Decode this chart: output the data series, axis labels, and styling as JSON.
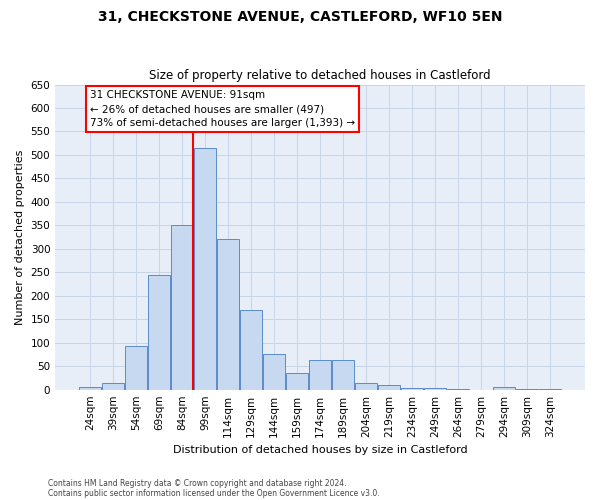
{
  "title": "31, CHECKSTONE AVENUE, CASTLEFORD, WF10 5EN",
  "subtitle": "Size of property relative to detached houses in Castleford",
  "xlabel": "Distribution of detached houses by size in Castleford",
  "ylabel": "Number of detached properties",
  "bar_labels": [
    "24sqm",
    "39sqm",
    "54sqm",
    "69sqm",
    "84sqm",
    "99sqm",
    "114sqm",
    "129sqm",
    "144sqm",
    "159sqm",
    "174sqm",
    "189sqm",
    "204sqm",
    "219sqm",
    "234sqm",
    "249sqm",
    "264sqm",
    "279sqm",
    "294sqm",
    "309sqm",
    "324sqm"
  ],
  "bar_values": [
    5,
    15,
    93,
    245,
    350,
    515,
    320,
    170,
    77,
    35,
    63,
    63,
    15,
    11,
    3,
    3,
    1,
    0,
    5,
    1,
    2
  ],
  "bar_color": "#c6d9f0",
  "bar_edge_color": "#5b8cc8",
  "grid_color": "#c8d4e8",
  "background_color": "#e8eef8",
  "ylim": [
    0,
    650
  ],
  "yticks": [
    0,
    50,
    100,
    150,
    200,
    250,
    300,
    350,
    400,
    450,
    500,
    550,
    600,
    650
  ],
  "annotation_line1": "31 CHECKSTONE AVENUE: 91sqm",
  "annotation_line2": "← 26% of detached houses are smaller (497)",
  "annotation_line3": "73% of semi-detached houses are larger (1,393) →",
  "red_line_x": 91,
  "bin_width": 15,
  "footer1": "Contains HM Land Registry data © Crown copyright and database right 2024.",
  "footer2": "Contains public sector information licensed under the Open Government Licence v3.0."
}
